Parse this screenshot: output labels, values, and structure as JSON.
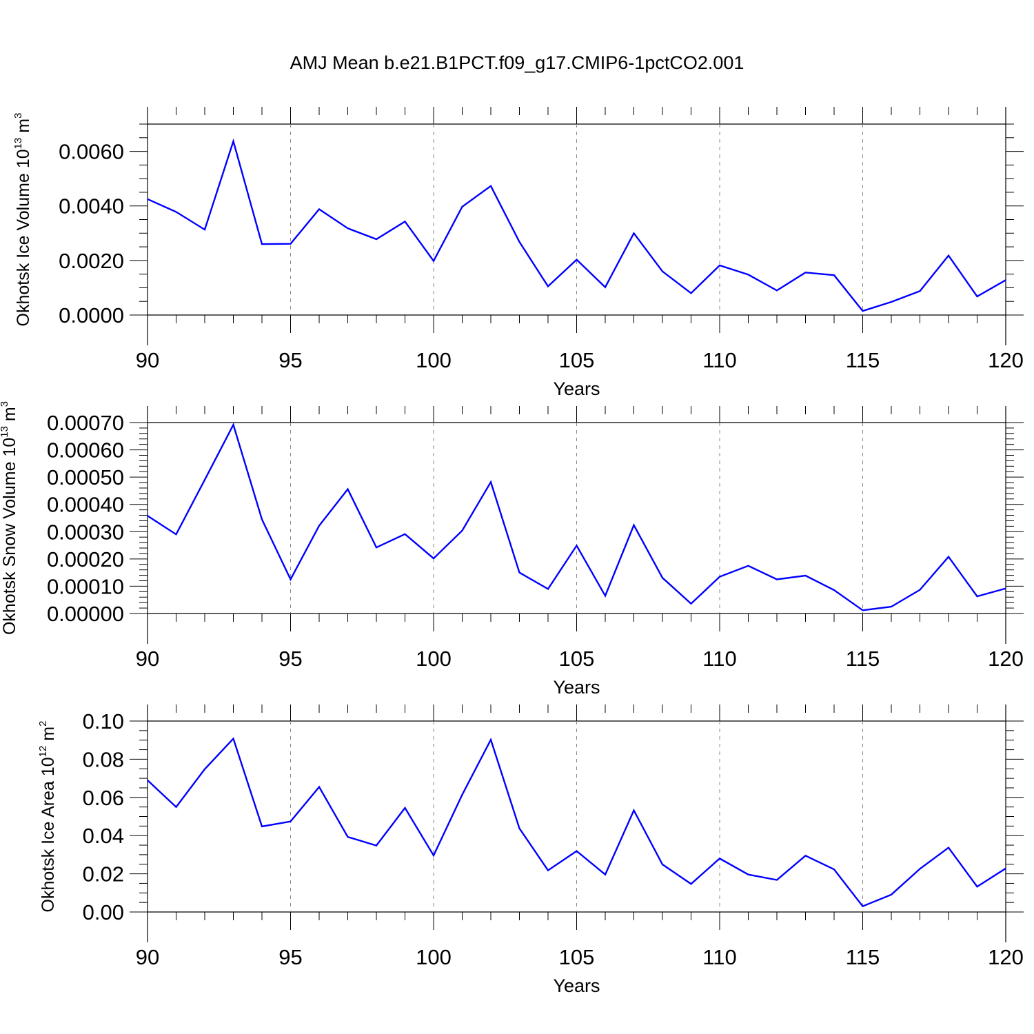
{
  "title": "AMJ Mean b.e21.B1PCT.f09_g17.CMIP6-1pctCO2.001",
  "chart_data": [
    {
      "type": "line",
      "xlabel": "Years",
      "ylabel": {
        "main": "Okhotsk Ice Volume 10",
        "exp": "13",
        "unit": " m",
        "unit_exp": "3"
      },
      "xlim": [
        90,
        120
      ],
      "ylim": [
        0,
        0.007
      ],
      "x_ticks": [
        "90",
        "95",
        "100",
        "105",
        "110",
        "115",
        "120"
      ],
      "y_ticks": [
        "0.0000",
        "0.0020",
        "0.0040",
        "0.0060"
      ],
      "series_color": "#0000ff",
      "x": [
        90,
        91,
        92,
        93,
        94,
        95,
        96,
        97,
        98,
        99,
        100,
        101,
        102,
        103,
        104,
        105,
        106,
        107,
        108,
        109,
        110,
        111,
        112,
        113,
        114,
        115,
        116,
        117,
        118,
        119,
        120
      ],
      "values": [
        0.00425,
        0.00378,
        0.00313,
        0.00637,
        0.0026,
        0.00261,
        0.00388,
        0.00318,
        0.00278,
        0.00343,
        0.00198,
        0.00397,
        0.00473,
        0.00268,
        0.00105,
        0.00203,
        0.00102,
        0.003,
        0.0016,
        0.0008,
        0.00182,
        0.00148,
        0.0009,
        0.00156,
        0.00146,
        0.00015,
        0.00048,
        0.00088,
        0.00218,
        0.00068,
        0.00128
      ]
    },
    {
      "type": "line",
      "xlabel": "Years",
      "ylabel": {
        "main": "Okhotsk Snow Volume 10",
        "exp": "13",
        "unit": " m",
        "unit_exp": "3"
      },
      "xlim": [
        90,
        120
      ],
      "ylim": [
        0,
        0.0007
      ],
      "x_ticks": [
        "90",
        "95",
        "100",
        "105",
        "110",
        "115",
        "120"
      ],
      "y_ticks": [
        "0.00000",
        "0.00010",
        "0.00020",
        "0.00030",
        "0.00040",
        "0.00050",
        "0.00060",
        "0.00070"
      ],
      "series_color": "#0000ff",
      "x": [
        90,
        91,
        92,
        93,
        94,
        95,
        96,
        97,
        98,
        99,
        100,
        101,
        102,
        103,
        104,
        105,
        106,
        107,
        108,
        109,
        110,
        111,
        112,
        113,
        114,
        115,
        116,
        117,
        118,
        119,
        120
      ],
      "values": [
        0.000358,
        0.00029,
        0.00049,
        0.000692,
        0.000345,
        0.000125,
        0.000322,
        0.000456,
        0.000242,
        0.000291,
        0.000202,
        0.000304,
        0.000482,
        0.00015,
        9e-05,
        0.000249,
        6.5e-05,
        0.000324,
        0.000131,
        3.6e-05,
        0.000135,
        0.000175,
        0.000125,
        0.000139,
        8.6e-05,
        1.2e-05,
        2.5e-05,
        8.7e-05,
        0.000208,
        6.3e-05,
        9.2e-05
      ]
    },
    {
      "type": "line",
      "xlabel": "Years",
      "ylabel": {
        "main": "Okhotsk Ice Area 10",
        "exp": "12",
        "unit": " m",
        "unit_exp": "2"
      },
      "xlim": [
        90,
        120
      ],
      "ylim": [
        0,
        0.1
      ],
      "x_ticks": [
        "90",
        "95",
        "100",
        "105",
        "110",
        "115",
        "120"
      ],
      "y_ticks": [
        "0.00",
        "0.02",
        "0.04",
        "0.06",
        "0.08",
        "0.10"
      ],
      "series_color": "#0000ff",
      "x": [
        90,
        91,
        92,
        93,
        94,
        95,
        96,
        97,
        98,
        99,
        100,
        101,
        102,
        103,
        104,
        105,
        106,
        107,
        108,
        109,
        110,
        111,
        112,
        113,
        114,
        115,
        116,
        117,
        118,
        119,
        120
      ],
      "values": [
        0.069,
        0.055,
        0.0748,
        0.0908,
        0.0448,
        0.0474,
        0.0655,
        0.0393,
        0.0348,
        0.0545,
        0.0296,
        0.0614,
        0.0902,
        0.0438,
        0.0218,
        0.0319,
        0.0196,
        0.0532,
        0.0249,
        0.0147,
        0.028,
        0.0196,
        0.0168,
        0.0295,
        0.0223,
        0.003,
        0.0091,
        0.0226,
        0.0337,
        0.0133,
        0.0228
      ]
    }
  ]
}
